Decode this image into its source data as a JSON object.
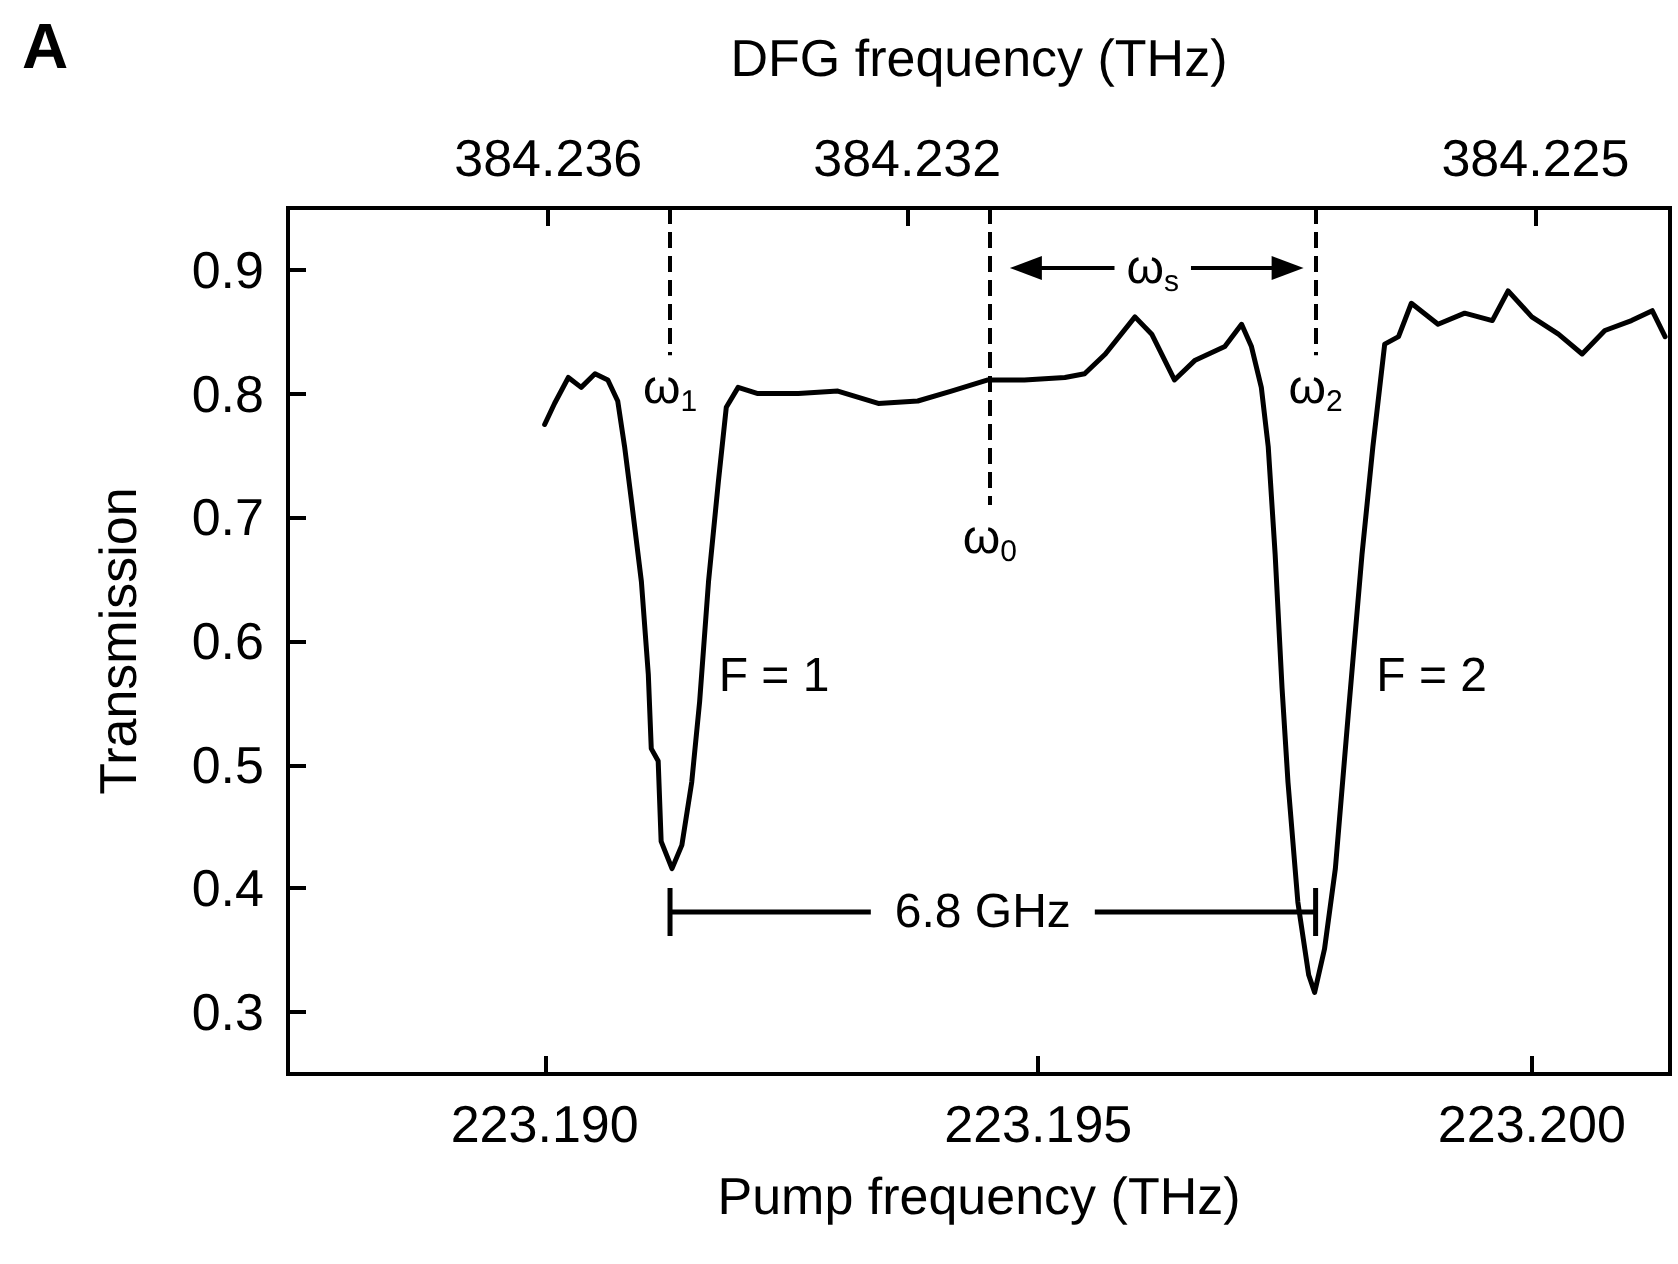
{
  "chart_data": {
    "type": "line",
    "title": "A",
    "xlabel": "Pump frequency (THz)",
    "x2label": "DFG frequency (THz)",
    "ylabel": "Transmission",
    "color": "#000000",
    "line_style": "solid",
    "x": [
      223.19,
      223.1901,
      223.19024,
      223.19037,
      223.19051,
      223.19064,
      223.19074,
      223.19081,
      223.19088,
      223.19098,
      223.19105,
      223.19108,
      223.19115,
      223.19118,
      223.19129,
      223.19139,
      223.19149,
      223.19157,
      223.19166,
      223.19176,
      223.19184,
      223.19196,
      223.19216,
      223.19257,
      223.19297,
      223.19338,
      223.19378,
      223.19412,
      223.19449,
      223.19486,
      223.19527,
      223.19547,
      223.19568,
      223.19598,
      223.19615,
      223.19638,
      223.19659,
      223.19689,
      223.19706,
      223.19716,
      223.19726,
      223.19733,
      223.1974,
      223.19747,
      223.19753,
      223.19763,
      223.19774,
      223.1978,
      223.1979,
      223.19801,
      223.19814,
      223.19828,
      223.19839,
      223.19851,
      223.19865,
      223.19878,
      223.19905,
      223.19932,
      223.1996,
      223.19976,
      223.2,
      223.20027,
      223.20051,
      223.20074,
      223.20101,
      223.20122,
      223.20135
    ],
    "values": [
      0.775,
      0.792,
      0.813,
      0.805,
      0.816,
      0.811,
      0.794,
      0.757,
      0.713,
      0.648,
      0.573,
      0.513,
      0.503,
      0.438,
      0.416,
      0.435,
      0.486,
      0.551,
      0.648,
      0.729,
      0.789,
      0.805,
      0.8,
      0.8,
      0.802,
      0.792,
      0.794,
      0.802,
      0.811,
      0.811,
      0.813,
      0.816,
      0.832,
      0.862,
      0.848,
      0.811,
      0.827,
      0.838,
      0.856,
      0.838,
      0.805,
      0.757,
      0.67,
      0.562,
      0.486,
      0.389,
      0.33,
      0.316,
      0.351,
      0.416,
      0.54,
      0.67,
      0.757,
      0.84,
      0.846,
      0.873,
      0.856,
      0.865,
      0.859,
      0.883,
      0.862,
      0.848,
      0.832,
      0.851,
      0.859,
      0.867,
      0.846
    ],
    "xlim": [
      223.1874,
      223.2014
    ],
    "xticks": [
      {
        "value": 223.19,
        "label": "223.190"
      },
      {
        "value": 223.195,
        "label": "223.195"
      },
      {
        "value": 223.2,
        "label": "223.200"
      }
    ],
    "x2lim": [
      384.2389,
      384.2235
    ],
    "x2ticks": [
      384.236,
      384.232,
      384.225
    ],
    "ylim": [
      0.25,
      0.95
    ],
    "yticks": [
      0.3,
      0.4,
      0.5,
      0.6,
      0.7,
      0.8,
      0.9
    ],
    "ref_lines": [
      {
        "axis": "x",
        "value": 223.19127,
        "line_style": "dashed"
      },
      {
        "axis": "x",
        "value": 223.19451,
        "line_style": "dashed"
      },
      {
        "axis": "x",
        "value": 223.19781,
        "line_style": "dashed"
      }
    ],
    "annotations": [
      {
        "text": "ω$_{1}$",
        "x": 223.19127,
        "y": 0.831
      },
      {
        "text": "ω$_{0}$",
        "x": 223.19451,
        "y": 0.71
      },
      {
        "text": "ω$_{2}$",
        "x": 223.19781,
        "y": 0.831
      },
      "ω$_{s}$",
      "F = 1",
      "F = 2",
      "6.8 GHz"
    ],
    "grid": false
  }
}
